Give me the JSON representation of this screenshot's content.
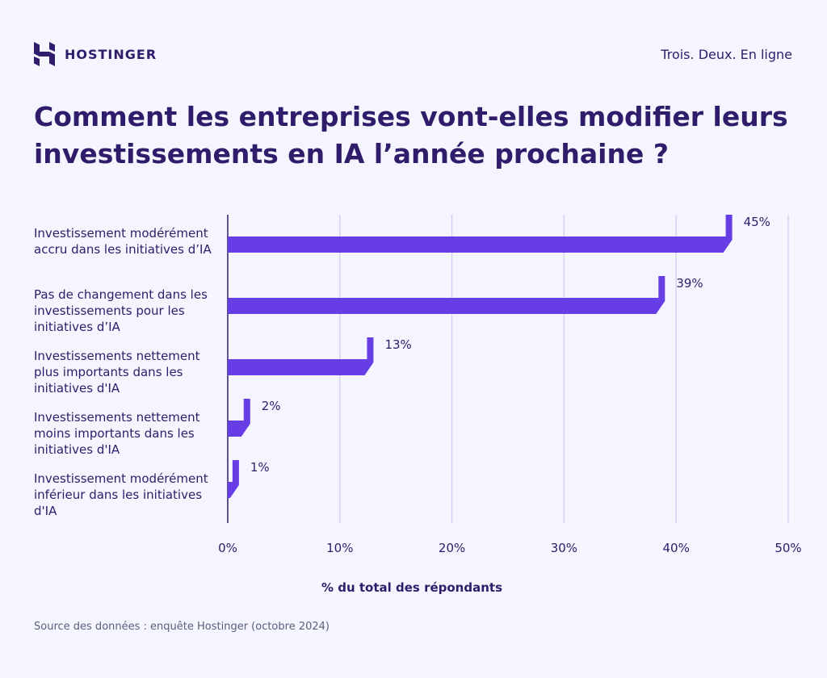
{
  "brand": {
    "name": "HOSTINGER",
    "tagline": "Trois. Deux. En ligne"
  },
  "colors": {
    "background": "#f4f5fe",
    "bar": "#673de6",
    "text": "#2f1c6a",
    "grid": "#d6d1f6"
  },
  "source": "Source des données : enquête Hostinger (octobre 2024)",
  "chart_data": {
    "type": "bar",
    "orientation": "horizontal",
    "title": "Comment les entreprises vont-elles modifier leurs investissements en IA l’année prochaine ?",
    "xlabel": "% du total des répondants",
    "xlim": [
      0,
      50
    ],
    "xticks": [
      "0%",
      "10%",
      "20%",
      "30%",
      "40%",
      "50%"
    ],
    "grid": true,
    "categories": [
      "Investissement modérément accru dans les initiatives d’IA",
      "Pas de changement dans les investissements pour les initiatives d’IA",
      "Investissements nettement plus importants dans les initiatives d'IA",
      "Investissements nettement moins importants dans les initiatives d'IA",
      "Investissement modérément inférieur dans les initiatives d'IA"
    ],
    "values": [
      45,
      39,
      13,
      2,
      1
    ],
    "data_labels": [
      "45%",
      "39%",
      "13%",
      "2%",
      "1%"
    ]
  }
}
